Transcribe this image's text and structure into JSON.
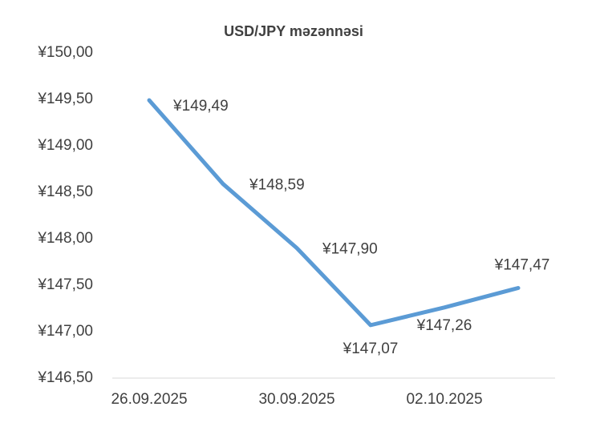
{
  "chart_data": {
    "type": "line",
    "title": "USD/JPY məzənnəsi",
    "categories": [
      "26.09.2025",
      null,
      "30.09.2025",
      null,
      "02.10.2025",
      null
    ],
    "series": [
      {
        "color": "#5b9bd5",
        "values": [
          149.49,
          148.59,
          147.9,
          147.07,
          147.26,
          147.47
        ],
        "value_labels": [
          "¥149,49",
          "¥148,59",
          "¥147,90",
          "¥147,07",
          "¥147,26",
          "¥147,47"
        ]
      }
    ],
    "ylim": [
      146.5,
      150
    ],
    "yticks": [
      {
        "value": 146.5,
        "label": "¥146,50"
      },
      {
        "value": 147,
        "label": "¥147,00"
      },
      {
        "value": 147.5,
        "label": "¥147,50"
      },
      {
        "value": 148,
        "label": "¥148,00"
      },
      {
        "value": 148.5,
        "label": "¥148,50"
      },
      {
        "value": 149,
        "label": "¥149,00"
      },
      {
        "value": 149.5,
        "label": "¥149,50"
      },
      {
        "value": 150,
        "label": "¥150,00"
      }
    ],
    "grid": false
  }
}
